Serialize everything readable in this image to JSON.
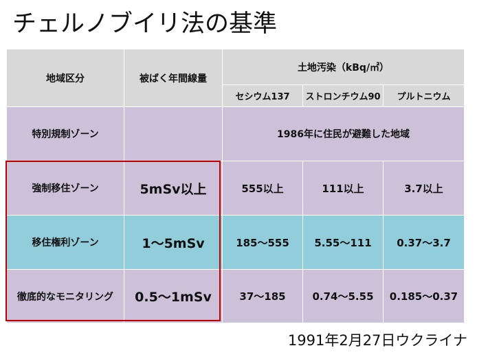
{
  "title": "チェルノブイリ法の基準",
  "table": {
    "headers": {
      "zone": "地域区分",
      "dose": "被ばく年間線量",
      "soil": "土地汚染（kBq/㎡）",
      "cesium": "セシウム137",
      "strontium": "ストロンチウム90",
      "plutonium": "プルトニウム"
    },
    "rows": [
      {
        "zone": "特別規制ゾーン",
        "dose": "",
        "merged": "1986年に住民が避難した地域"
      },
      {
        "zone": "強制移住ゾーン",
        "dose": "5mSv以上",
        "cesium": "555以上",
        "strontium": "111以上",
        "plutonium": "3.7以上"
      },
      {
        "zone": "移住権利ゾーン",
        "dose": "1～5mSv",
        "cesium": "185～555",
        "strontium": "5.55～111",
        "plutonium": "0.37～3.7"
      },
      {
        "zone": "徹底的なモニタリング",
        "dose": "0.5～1mSv",
        "cesium": "37～185",
        "strontium": "0.74～5.55",
        "plutonium": "0.185～0.37"
      }
    ]
  },
  "footer": "1991年2月27日ウクライナ",
  "colors": {
    "header": "#d8d8d8",
    "purple_row": "#cdc1da",
    "cyan_row": "#92cddc",
    "highlight_border": "#c00000"
  }
}
